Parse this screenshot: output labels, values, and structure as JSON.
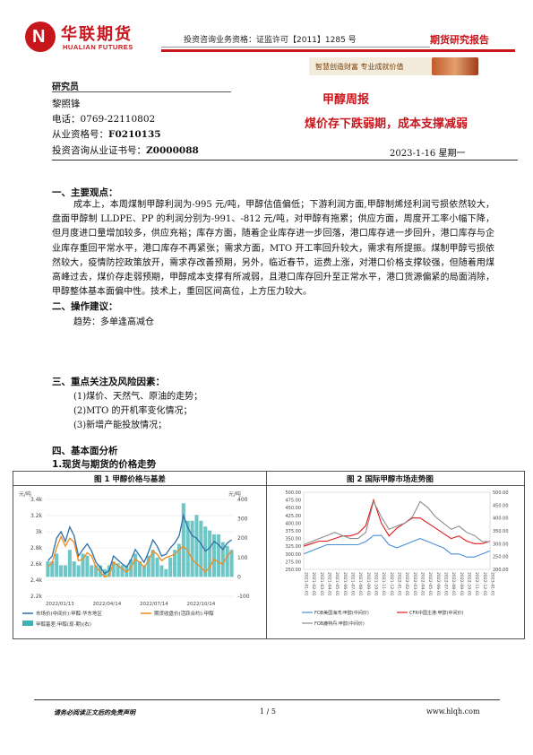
{
  "header": {
    "logo_cn": "华联期货",
    "logo_en": "HUALIAN FUTURES",
    "qualification": "投资咨询业务资格：证监许可【2011】1285 号",
    "report_type": "期货研究报告",
    "slogan": "智慧创造财富  专业成就价值",
    "brand_color": "#c8161d"
  },
  "analyst": {
    "heading": "研究员",
    "name": "黎照锋",
    "phone": "电话：0769-22110802",
    "practice_label": "从业资格号：",
    "practice_no": "F0210135",
    "consult_label": "投资咨询从业证书号：",
    "consult_no": "Z0000088"
  },
  "report": {
    "title": "甲醇周报",
    "subtitle": "煤价存下跌弱期，成本支撑减弱",
    "date": "2023-1-16 星期一"
  },
  "sections": {
    "s1_title": "一、主要观点：",
    "s1_body": "成本上，本周煤制甲醇利润为-995 元/吨，甲醇估值偏低；下游利润方面,甲醇制烯烃利润亏损依然较大，盘面甲醇制 LLDPE、PP 的利润分别为-991、-812 元/吨，对甲醇有拖累；供应方面，周度开工率小幅下降，但月度进口量增加较多，供应充裕；库存方面，随着企业库存进一步回落，港口库存进一步回升，港口库存与企业库存重回平常水平，港口库存不再紧张；需求方面，MTO 开工率回升较大，需求有所提振。煤制甲醇亏损依然较大，疫情防控政策放开，需求存改善预期，另外，临近春节，运费上涨，对港口价格支撑较强，但随着用煤高峰过去，煤价存走弱预期，甲醇成本支撑有所减弱，且港口库存回升至正常水平，港口货源偏紧的局面消除，甲醇整体基本面偏中性。技术上，重回区间高位，上方压力较大。",
    "s2_title": "二、操作建议：",
    "s2_body": "趋势：多单逢高减仓",
    "s3_title": "三、重点关注及风险因素：",
    "s3_items": [
      "(1)煤价、天然气、原油的走势；",
      "(2)MTO 的开机率变化情况；",
      "(3)新增产能投放情况；"
    ],
    "s4_title": "四、基本面分析",
    "s4_sub": "1.现货与期货的价格走势"
  },
  "chart_data": [
    {
      "type": "line",
      "title": "图 1  甲醇价格与基差",
      "left_unit": "元/吨",
      "right_unit": "元/吨",
      "x_ticks": [
        "2022/01/13",
        "2022/04/14",
        "2022/07/14",
        "2022/10/14"
      ],
      "y_left_ticks": [
        "3.4k",
        "3.2k",
        "3k",
        "2.8k",
        "2.6k",
        "2.4k",
        "2.2k"
      ],
      "y_left_range": [
        2200,
        3400
      ],
      "y_right_ticks": [
        "400",
        "300",
        "200",
        "100",
        "0",
        "-100"
      ],
      "y_right_range": [
        -100,
        400
      ],
      "series": [
        {
          "name": "市场价(中间价):甲醇:华东地区",
          "color": "#2e6fa7",
          "axis": "left",
          "values": [
            2640,
            2700,
            2920,
            3000,
            2880,
            3060,
            2950,
            2700,
            2780,
            2850,
            2760,
            2620,
            2560,
            2480,
            2520,
            2700,
            2650,
            2600,
            2560,
            2650,
            2780,
            2700,
            2620,
            2750,
            2900,
            2820,
            2700,
            2720,
            2800,
            2860,
            2950,
            3200,
            3050,
            2950,
            2920,
            2850,
            2760,
            2800,
            2880,
            2840,
            2780,
            2860,
            2900
          ]
        },
        {
          "name": "期货收盘价(活跃合约):甲醇",
          "color": "#f08a1c",
          "axis": "left",
          "values": [
            2560,
            2620,
            2800,
            2940,
            2820,
            2920,
            2870,
            2640,
            2660,
            2740,
            2700,
            2560,
            2500,
            2440,
            2460,
            2620,
            2580,
            2540,
            2500,
            2560,
            2660,
            2620,
            2560,
            2640,
            2760,
            2720,
            2640,
            2680,
            2700,
            2720,
            2780,
            2820,
            2760,
            2660,
            2600,
            2560,
            2500,
            2560,
            2660,
            2620,
            2600,
            2700,
            2760
          ]
        },
        {
          "name": "甲醇基差:甲醇(现-期)(右)",
          "color": "#3fb3b3",
          "axis": "right",
          "values": [
            80,
            80,
            120,
            60,
            60,
            140,
            80,
            60,
            120,
            110,
            60,
            60,
            60,
            40,
            60,
            80,
            70,
            60,
            60,
            90,
            120,
            80,
            60,
            110,
            140,
            100,
            60,
            40,
            100,
            140,
            170,
            380,
            290,
            290,
            320,
            290,
            260,
            240,
            220,
            220,
            180,
            160,
            140
          ]
        }
      ]
    },
    {
      "type": "line",
      "title": "图 2  国际甲醇市场走势图",
      "x_ticks": [
        "2021-01-01",
        "2021-02-01",
        "2021-03-01",
        "2021-04-01",
        "2021-05-01",
        "2021-06-01",
        "2021-07-01",
        "2021-08-01",
        "2021-09-01",
        "2021-10-01",
        "2021-11-01",
        "2021-12-01",
        "2022-01-01",
        "2022-02-01",
        "2022-03-01",
        "2022-04-01",
        "2022-05-01",
        "2022-06-01",
        "2022-07-01",
        "2022-08-01",
        "2022-09-01",
        "2022-10-01",
        "2022-11-01",
        "2022-12-01",
        "2023-01-01"
      ],
      "y_left_ticks": [
        "500.00",
        "475.00",
        "450.00",
        "425.00",
        "400.00",
        "375.00",
        "350.00",
        "325.00",
        "300.00",
        "275.00",
        "250.00"
      ],
      "y_left_range": [
        250,
        500
      ],
      "y_right_ticks": [
        "500.00",
        "450.00",
        "400.00",
        "350.00",
        "300.00",
        "250.00",
        "200.00"
      ],
      "y_right_range": [
        200,
        500
      ],
      "series": [
        {
          "name": "CFR中国主港:甲醇(中间价)",
          "color": "#e31a1c",
          "axis": "right",
          "values": [
            290,
            300,
            310,
            310,
            320,
            330,
            330,
            340,
            370,
            470,
            380,
            330,
            360,
            380,
            400,
            400,
            380,
            360,
            340,
            320,
            330,
            310,
            300,
            300,
            310
          ]
        },
        {
          "name": "FOB鹿特丹:甲醇(中间价)",
          "color": "#8c8c8c",
          "axis": "left",
          "values": [
            330,
            340,
            350,
            360,
            370,
            360,
            350,
            350,
            370,
            470,
            420,
            380,
            390,
            400,
            420,
            470,
            450,
            420,
            400,
            380,
            390,
            370,
            360,
            340,
            340
          ]
        },
        {
          "name": "FOB美国海湾:甲醇(中间价)",
          "color": "#4a90d9",
          "axis": "left",
          "values": [
            300,
            310,
            320,
            330,
            330,
            330,
            330,
            330,
            340,
            360,
            360,
            330,
            320,
            330,
            340,
            350,
            340,
            330,
            320,
            300,
            300,
            290,
            290,
            300,
            310
          ]
        }
      ]
    }
  ],
  "footer": {
    "disclaimer": "请务必阅读正文后的免责声明",
    "page": "1 / 5",
    "website": "www.hlqh.com"
  }
}
